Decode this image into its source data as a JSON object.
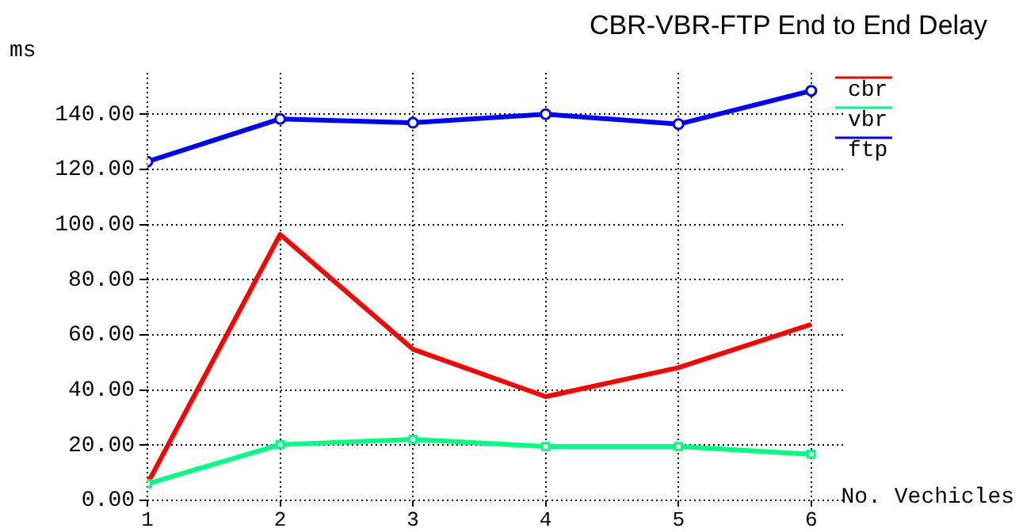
{
  "chart_data": {
    "type": "line",
    "title": "CBR-VBR-FTP End to End Delay",
    "ylabel": "ms",
    "xlabel": "No. Vechicles",
    "x": [
      1,
      2,
      3,
      4,
      5,
      6
    ],
    "xlim": [
      1,
      6.24
    ],
    "xticks": [
      1,
      2,
      3,
      4,
      5,
      6
    ],
    "ylim": [
      0,
      155
    ],
    "yticks": [
      {
        "value": 0,
        "label": "0.00"
      },
      {
        "value": 20,
        "label": "20.00"
      },
      {
        "value": 40,
        "label": "40.00"
      },
      {
        "value": 60,
        "label": "60.00"
      },
      {
        "value": 80,
        "label": "80.00"
      },
      {
        "value": 100,
        "label": "100.00"
      },
      {
        "value": 120,
        "label": "120.00"
      },
      {
        "value": 140,
        "label": "140.00"
      }
    ],
    "grid": true,
    "legend": "top right",
    "line_style": "solid",
    "series": [
      {
        "name": "cbr",
        "color": "#ff0000",
        "marker": "none",
        "values": [
          6,
          96.4,
          54.8,
          37.6,
          48.1,
          63.8
        ]
      },
      {
        "name": "vbr",
        "color": "#00ff80",
        "marker": "square",
        "values": [
          6,
          20.2,
          22.1,
          19.5,
          19.5,
          16.7
        ]
      },
      {
        "name": "ftp",
        "color": "#0000ff",
        "marker": "circle",
        "values": [
          122.8,
          138.3,
          136.9,
          140,
          136.4,
          148.5
        ]
      }
    ]
  }
}
